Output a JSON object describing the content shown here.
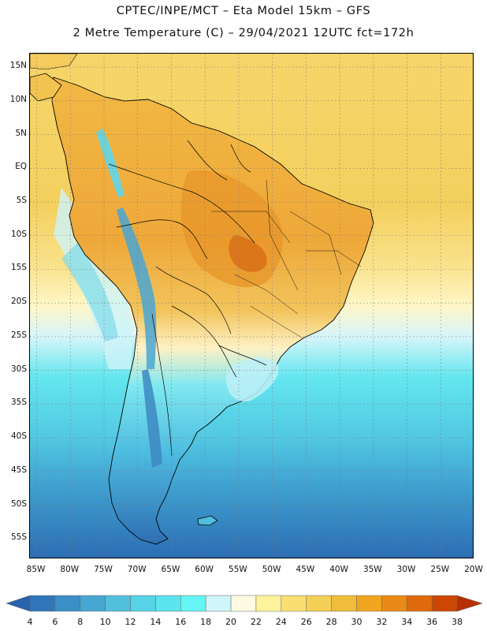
{
  "header": {
    "line1": "CPTEC/INPE/MCT –  Eta Model 15km – GFS",
    "line2": "2 Metre Temperature (C) – 29/04/2021 12UTC fct=172h"
  },
  "map": {
    "lat_range": [
      -58,
      17
    ],
    "lon_range": [
      -86,
      -20
    ],
    "lat_labels": [
      {
        "lat": 15,
        "label": "15N"
      },
      {
        "lat": 10,
        "label": "10N"
      },
      {
        "lat": 5,
        "label": "5N"
      },
      {
        "lat": 0,
        "label": "EQ"
      },
      {
        "lat": -5,
        "label": "5S"
      },
      {
        "lat": -10,
        "label": "10S"
      },
      {
        "lat": -15,
        "label": "15S"
      },
      {
        "lat": -20,
        "label": "20S"
      },
      {
        "lat": -25,
        "label": "25S"
      },
      {
        "lat": -30,
        "label": "30S"
      },
      {
        "lat": -35,
        "label": "35S"
      },
      {
        "lat": -40,
        "label": "40S"
      },
      {
        "lat": -45,
        "label": "45S"
      },
      {
        "lat": -50,
        "label": "50S"
      },
      {
        "lat": -55,
        "label": "55S"
      }
    ],
    "lon_labels": [
      {
        "lon": -85,
        "label": "85W"
      },
      {
        "lon": -80,
        "label": "80W"
      },
      {
        "lon": -75,
        "label": "75W"
      },
      {
        "lon": -70,
        "label": "70W"
      },
      {
        "lon": -65,
        "label": "65W"
      },
      {
        "lon": -60,
        "label": "60W"
      },
      {
        "lon": -55,
        "label": "55W"
      },
      {
        "lon": -50,
        "label": "50W"
      },
      {
        "lon": -45,
        "label": "45W"
      },
      {
        "lon": -40,
        "label": "40W"
      },
      {
        "lon": -35,
        "label": "35W"
      },
      {
        "lon": -30,
        "label": "30W"
      },
      {
        "lon": -25,
        "label": "25W"
      },
      {
        "lon": -20,
        "label": "20W"
      }
    ]
  },
  "colorbar": {
    "labels": [
      "4",
      "6",
      "8",
      "10",
      "12",
      "14",
      "16",
      "18",
      "20",
      "22",
      "24",
      "26",
      "28",
      "30",
      "32",
      "34",
      "36",
      "38"
    ],
    "colors": [
      "#2a62ab",
      "#2f77b9",
      "#3a8fc6",
      "#46a6d2",
      "#52bfdd",
      "#56d3e6",
      "#5ae4ee",
      "#66f4f4",
      "#cff6fb",
      "#fffbe2",
      "#fff39c",
      "#f9df72",
      "#f4cf56",
      "#f0bd3a",
      "#f0a51e",
      "#e98a16",
      "#df6a0c",
      "#cc4604",
      "#b82f02"
    ]
  }
}
